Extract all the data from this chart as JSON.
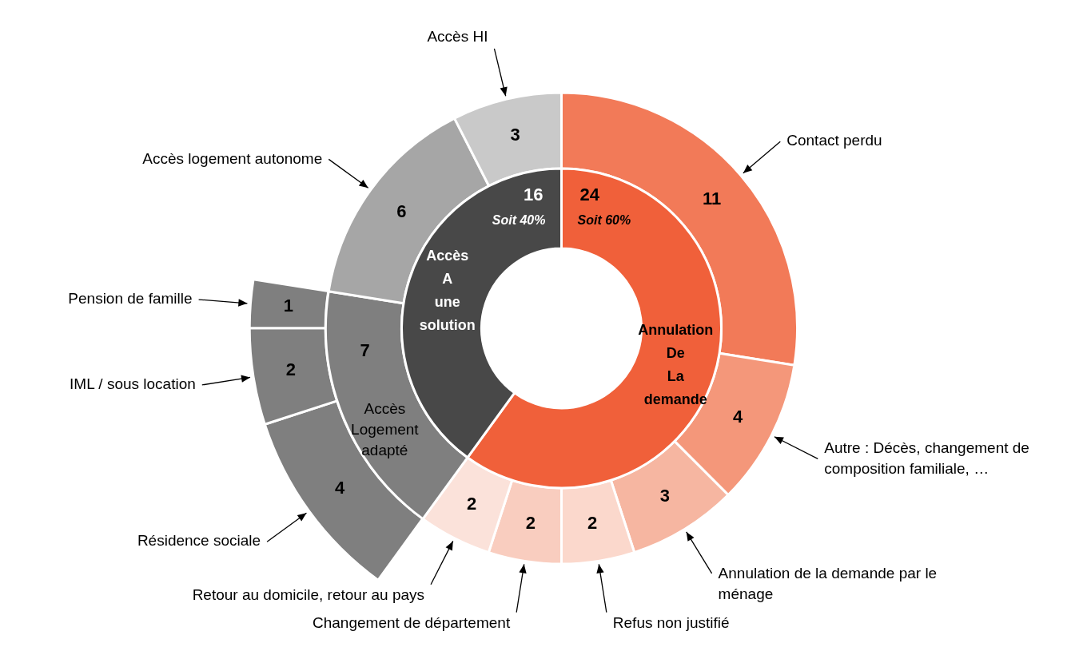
{
  "chart_data": [
    {
      "type": "donut",
      "categories": [
        "Annulation De La demande",
        "Accès A une solution"
      ],
      "values": [
        24,
        16
      ],
      "colors": [
        "#f0603a",
        "#484848"
      ],
      "data_labels": true,
      "annotations": [
        "Soit 60%",
        "Soit 40%"
      ]
    },
    {
      "type": "donut",
      "categories": [
        "Contact perdu",
        "Autre : Décès, changement de composition familiale, …",
        "Annulation de la demande par le ménage",
        "Refus non justifié",
        "Changement de département",
        "Retour au domicile, retour au pays",
        "Accès Logement adapté",
        "Accès logement autonome",
        "Accès HI"
      ],
      "values": [
        11,
        4,
        3,
        2,
        2,
        2,
        7,
        6,
        3
      ],
      "colors": [
        "#f27a58",
        "#f4977a",
        "#f6b6a1",
        "#fbd8cc",
        "#f9cdbf",
        "#fbe2da",
        "#7f7f7f",
        "#a6a6a6",
        "#c9c9c9"
      ],
      "data_labels": true
    },
    {
      "type": "donut",
      "categories": [
        "Résidence sociale",
        "IML / sous location",
        "Pension de famille"
      ],
      "values": [
        4,
        2,
        1
      ],
      "colors": [
        "#7f7f7f",
        "#7f7f7f",
        "#7f7f7f"
      ],
      "data_labels": true
    }
  ]
}
